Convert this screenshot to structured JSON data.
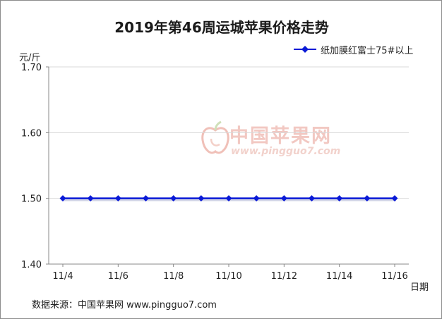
{
  "chart_data": {
    "type": "line",
    "title": "2019年第46周运城苹果价格走势",
    "ylabel": "元/斤",
    "xlabel": "日期",
    "ylim": [
      1.4,
      1.7
    ],
    "yticks": [
      "1.70",
      "1.60",
      "1.50",
      "1.40"
    ],
    "ytick_values": [
      1.7,
      1.6,
      1.5,
      1.4
    ],
    "xtick_labels": [
      "11/4",
      "11/6",
      "11/8",
      "11/10",
      "11/12",
      "11/14",
      "11/16"
    ],
    "x": [
      "11/4",
      "11/5",
      "11/6",
      "11/7",
      "11/8",
      "11/9",
      "11/10",
      "11/11",
      "11/12",
      "11/13",
      "11/14",
      "11/15",
      "11/16"
    ],
    "series": [
      {
        "name": "纸加膜红富士75#以上",
        "values": [
          1.5,
          1.5,
          1.5,
          1.5,
          1.5,
          1.5,
          1.5,
          1.5,
          1.5,
          1.5,
          1.5,
          1.5,
          1.5
        ]
      }
    ],
    "grid": true,
    "legend": "top-right",
    "colors": {
      "series": "#0a1ad6",
      "grid": "#d9d9d9",
      "axis": "#888888"
    }
  },
  "source": "数据来源：中国苹果网 www.pingguo7.com",
  "watermark": {
    "name": "中国苹果网",
    "url": "www.pingguo7.com"
  }
}
